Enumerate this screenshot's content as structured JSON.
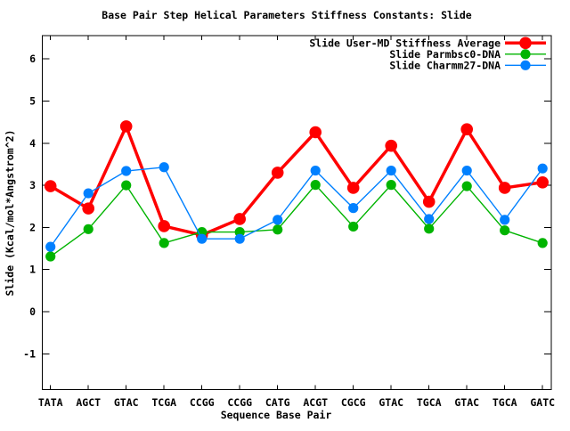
{
  "chart_data": {
    "type": "line",
    "title": "Base Pair Step Helical Parameters Stiffness Constants: Slide",
    "xlabel": "Sequence Base Pair",
    "ylabel": "Slide (Kcal/mol*Angstrom^2)",
    "categories": [
      "TATA",
      "AGCT",
      "GTAC",
      "TCGA",
      "CCGG",
      "CCGG",
      "CATG",
      "ACGT",
      "CGCG",
      "GTAC",
      "TGCA",
      "GTAC",
      "TGCA",
      "GATC"
    ],
    "yticks": [
      -1,
      0,
      1,
      2,
      3,
      4,
      5,
      6
    ],
    "ylim": [
      -1.85,
      6.55
    ],
    "grid": false,
    "legend_position": "top-right-inside",
    "axis_color": "#000000",
    "background_color": "#ffffff",
    "series": [
      {
        "name": "Slide User-MD Stiffness Average",
        "color": "#ff0000",
        "line_width": 3.5,
        "marker": "filled-circle",
        "marker_radius": 6.8,
        "values": [
          2.98,
          2.45,
          4.4,
          2.03,
          1.82,
          2.2,
          3.3,
          4.26,
          2.94,
          3.94,
          2.61,
          4.33,
          2.94,
          3.07
        ]
      },
      {
        "name": "Slide Parmbsc0-DNA",
        "color": "#00b400",
        "line_width": 1.4,
        "marker": "filled-circle",
        "marker_radius": 5.6,
        "values": [
          1.31,
          1.96,
          3.0,
          1.63,
          1.89,
          1.89,
          1.95,
          3.01,
          2.02,
          3.01,
          1.97,
          2.98,
          1.93,
          1.63
        ]
      },
      {
        "name": "Slide Charmm27-DNA",
        "color": "#0080ff",
        "line_width": 1.4,
        "marker": "filled-circle",
        "marker_radius": 5.6,
        "values": [
          1.54,
          2.81,
          3.34,
          3.43,
          1.73,
          1.73,
          2.18,
          3.35,
          2.46,
          3.35,
          2.2,
          3.35,
          2.18,
          3.4
        ]
      }
    ]
  }
}
